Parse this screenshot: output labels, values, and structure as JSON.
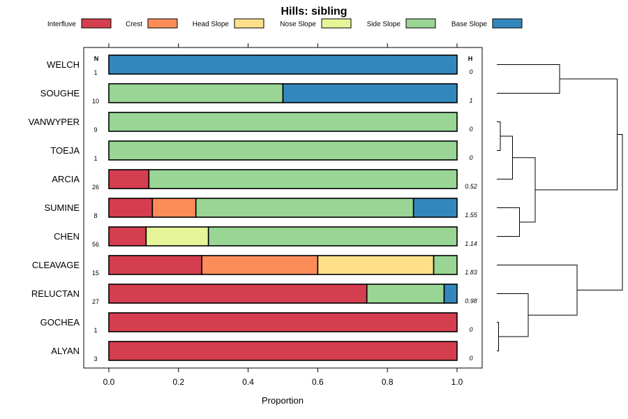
{
  "chart_data": {
    "type": "bar",
    "orientation": "horizontal",
    "stacked": true,
    "title": "Hills: sibling",
    "xlabel": "Proportion",
    "ylabel": "",
    "xlim": [
      0,
      1
    ],
    "xticks": [
      "0.0",
      "0.2",
      "0.4",
      "0.6",
      "0.8",
      "1.0"
    ],
    "n_header": "N",
    "h_header": "H",
    "legend_position": "top",
    "legend": [
      {
        "name": "Interfluve",
        "color": "#D53E4F"
      },
      {
        "name": "Crest",
        "color": "#FC8D59"
      },
      {
        "name": "Head Slope",
        "color": "#FEE08B"
      },
      {
        "name": "Nose Slope",
        "color": "#E6F598"
      },
      {
        "name": "Side Slope",
        "color": "#99D594"
      },
      {
        "name": "Base Slope",
        "color": "#3288BD"
      }
    ],
    "categories": [
      "WELCH",
      "SOUGHE",
      "VANWYPER",
      "TOEJA",
      "ARCIA",
      "SUMINE",
      "CHEN",
      "CLEAVAGE",
      "RELUCTAN",
      "GOCHEA",
      "ALYAN"
    ],
    "n_values": [
      "1",
      "10",
      "9",
      "1",
      "26",
      "8",
      "56",
      "15",
      "27",
      "1",
      "3"
    ],
    "h_values": [
      "0",
      "1",
      "0",
      "0",
      "0.52",
      "1.55",
      "1.14",
      "1.83",
      "0.98",
      "0",
      "0"
    ],
    "series": [
      {
        "name": "Interfluve",
        "values": [
          0,
          0,
          0,
          0,
          0.115,
          0.125,
          0.107,
          0.267,
          0.741,
          1,
          1
        ]
      },
      {
        "name": "Crest",
        "values": [
          0,
          0,
          0,
          0,
          0,
          0.125,
          0,
          0.333,
          0,
          0,
          0
        ]
      },
      {
        "name": "Head Slope",
        "values": [
          0,
          0,
          0,
          0,
          0,
          0,
          0,
          0.333,
          0,
          0,
          0
        ]
      },
      {
        "name": "Nose Slope",
        "values": [
          0,
          0,
          0,
          0,
          0,
          0,
          0.179,
          0,
          0,
          0,
          0
        ]
      },
      {
        "name": "Side Slope",
        "values": [
          0,
          0.5,
          1,
          1,
          0.885,
          0.625,
          0.714,
          0.067,
          0.222,
          0,
          0
        ]
      },
      {
        "name": "Base Slope",
        "values": [
          1,
          0.5,
          0,
          0,
          0,
          0.125,
          0,
          0,
          0.037,
          0,
          0
        ]
      }
    ],
    "dendrogram": {
      "merges": [
        {
          "left": "WELCH",
          "right": "SOUGHE",
          "height": 0.36
        },
        {
          "left": "VANWYPER",
          "right": "TOEJA",
          "height": 0.02
        },
        {
          "left": "VANWYPER+TOEJA",
          "right": "ARCIA",
          "height": 0.09
        },
        {
          "left": "SUMINE",
          "right": "CHEN",
          "height": 0.13
        },
        {
          "left": "VANWYPER+TOEJA+ARCIA",
          "right": "SUMINE+CHEN",
          "height": 0.22
        },
        {
          "left": "GOCHEA",
          "right": "ALYAN",
          "height": 0.01
        },
        {
          "left": "RELUCTAN",
          "right": "GOCHEA+ALYAN",
          "height": 0.18
        },
        {
          "left": "CLEAVAGE",
          "right": "RELUCTAN+GOCHEA+ALYAN",
          "height": 0.46
        },
        {
          "left": "WELCH+SOUGHE",
          "right": "VANWYPER+TOEJA+ARCIA+SUMINE+CHEN",
          "height": 0.69
        },
        {
          "left": "WELCH+SOUGHE+VANWYPER+TOEJA+ARCIA+SUMINE+CHEN",
          "right": "CLEAVAGE+RELUCTAN+GOCHEA+ALYAN",
          "height": 0.72
        }
      ]
    }
  }
}
